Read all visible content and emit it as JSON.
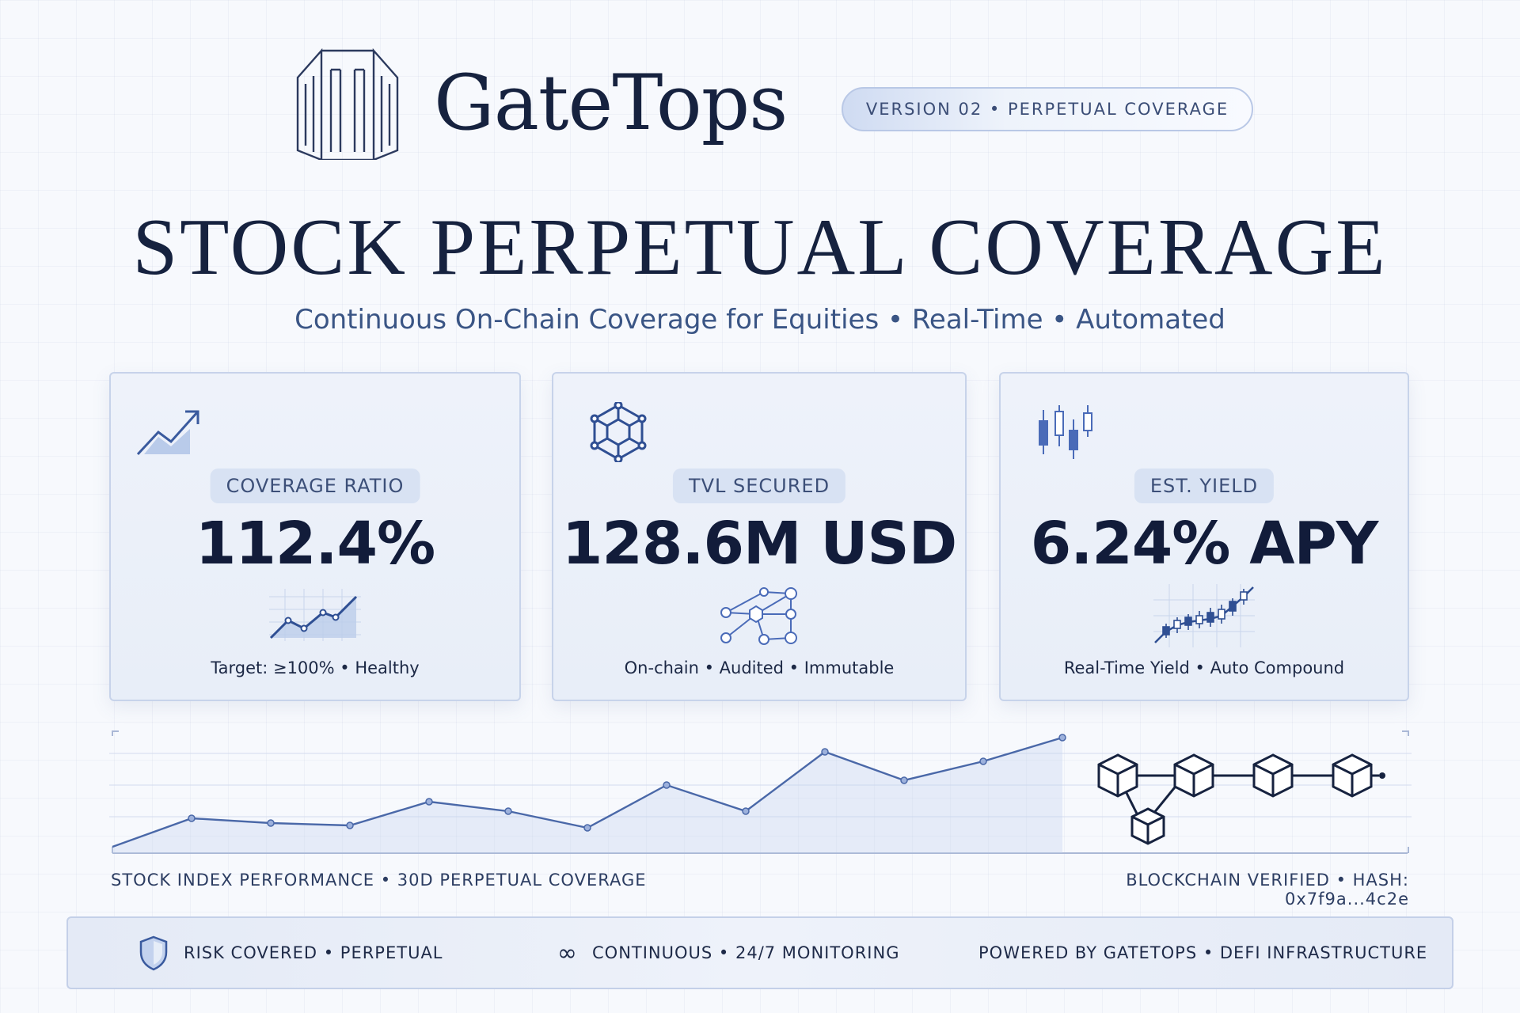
{
  "header": {
    "brand": "GateTops",
    "version_badge": "VERSION 02 • PERPETUAL COVERAGE"
  },
  "hero": {
    "title": "STOCK PERPETUAL COVERAGE",
    "subtitle": "Continuous On-Chain Coverage for Equities • Real-Time • Automated"
  },
  "cards": [
    {
      "label": "COVERAGE RATIO",
      "value": "112.4%",
      "caption": "Target: ≥100% • Healthy",
      "icon": "trend-up-icon"
    },
    {
      "label": "TVL SECURED",
      "value": "128.6M USD",
      "caption": "On-chain • Audited • Immutable",
      "icon": "network-hex-icon"
    },
    {
      "label": "EST. YIELD",
      "value": "6.24% APY",
      "caption": "Real-Time Yield • Auto Compound",
      "icon": "candlestick-icon"
    }
  ],
  "performance": {
    "caption": "STOCK INDEX PERFORMANCE • 30D PERPETUAL COVERAGE",
    "series": [
      2,
      14,
      12,
      11,
      21,
      17,
      10,
      28,
      17,
      42,
      30,
      38,
      48
    ]
  },
  "blockchain": {
    "caption": "BLOCKCHAIN VERIFIED • HASH: 0x7f9a...4c2e"
  },
  "footer": {
    "item1": "RISK COVERED • PERPETUAL",
    "item2": "CONTINUOUS • 24/7 MONITORING",
    "item3": "POWERED BY GATETOPS • DEFI INFRASTRUCTURE"
  },
  "colors": {
    "navy": "#16223f",
    "accent": "#4a6bb8",
    "card_bg": "#eef2fa"
  }
}
